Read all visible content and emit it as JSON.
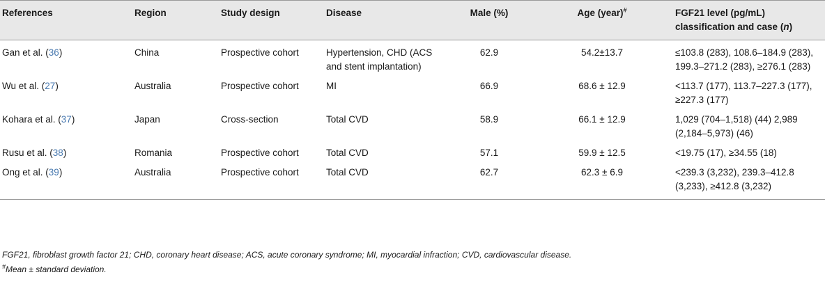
{
  "table": {
    "headers": {
      "references": "References",
      "region": "Region",
      "study_design": "Study design",
      "disease": "Disease",
      "male": "Male (%)",
      "age": "Age (year)",
      "age_marker": "#",
      "fgf21_main": "FGF21 level (pg/mL) classification and case (",
      "fgf21_n": "n",
      "fgf21_close": ")"
    },
    "rows": [
      {
        "ref_author": "Gan et al. (",
        "ref_num": "36",
        "ref_close": ")",
        "region": "China",
        "design": "Prospective cohort",
        "disease": "Hypertension, CHD (ACS and stent implantation)",
        "male": "62.9",
        "age": "54.2±13.7",
        "fgf21": "≤103.8 (283), 108.6–184.9 (283), 199.3–271.2 (283), ≥276.1 (283)"
      },
      {
        "ref_author": "Wu et al. (",
        "ref_num": "27",
        "ref_close": ")",
        "region": "Australia",
        "design": "Prospective cohort",
        "disease": "MI",
        "male": "66.9",
        "age": "68.6 ± 12.9",
        "fgf21": "<113.7 (177), 113.7–227.3 (177), ≥227.3 (177)"
      },
      {
        "ref_author": "Kohara et al. (",
        "ref_num": "37",
        "ref_close": ")",
        "region": "Japan",
        "design": "Cross-section",
        "disease": "Total CVD",
        "male": "58.9",
        "age": "66.1 ± 12.9",
        "fgf21": "1,029 (704–1,518) (44) 2,989 (2,184–5,973) (46)"
      },
      {
        "ref_author": "Rusu et al. (",
        "ref_num": "38",
        "ref_close": ")",
        "region": "Romania",
        "design": "Prospective cohort",
        "disease": "Total CVD",
        "male": "57.1",
        "age": "59.9 ± 12.5",
        "fgf21": "<19.75 (17), ≥34.55 (18)"
      },
      {
        "ref_author": "Ong et al. (",
        "ref_num": "39",
        "ref_close": ")",
        "region": "Australia",
        "design": "Prospective cohort",
        "disease": "Total CVD",
        "male": "62.7",
        "age": "62.3 ± 6.9",
        "fgf21": "<239.3 (3,232), 239.3–412.8 (3,233), ≥412.8 (3,232)"
      }
    ]
  },
  "footnotes": {
    "abbreviations": "FGF21, fibroblast growth factor 21; CHD, coronary heart disease; ACS, acute coronary syndrome; MI, myocardial infraction; CVD, cardiovascular disease.",
    "mean_marker": "#",
    "mean_text": "Mean ± standard deviation."
  }
}
